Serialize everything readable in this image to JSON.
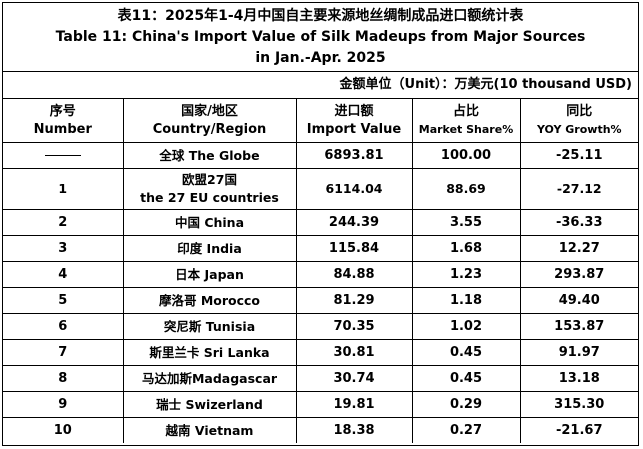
{
  "title": {
    "zh": "表11：2025年1-4月中国自主要来源地丝绸制成品进口额统计表",
    "en_line1": "Table 11: China's Import Value of Silk Madeups from Major Sources",
    "en_line2": "in Jan.-Apr. 2025"
  },
  "unit": "金额单位（Unit）：万美元(10 thousand USD)",
  "headers": [
    {
      "zh": "序号",
      "en": "Number"
    },
    {
      "zh": "国家/地区",
      "en": "Country/Region"
    },
    {
      "zh": "进口额",
      "en": "Import Value"
    },
    {
      "zh": "占比",
      "en": "Market Share%"
    },
    {
      "zh": "同比",
      "en": "YOY Growth%"
    }
  ],
  "rows": [
    {
      "number": "",
      "country": "全球 The Globe",
      "country_line2": "",
      "value": "6893.81",
      "share": "100.00",
      "growth": "-25.11"
    },
    {
      "number": "1",
      "country": "欧盟27国",
      "country_line2": "the 27 EU countries",
      "value": "6114.04",
      "share": "88.69",
      "growth": "-27.12"
    },
    {
      "number": "2",
      "country": "中国 China",
      "country_line2": "",
      "value": "244.39",
      "share": "3.55",
      "growth": "-36.33"
    },
    {
      "number": "3",
      "country": "印度 India",
      "country_line2": "",
      "value": "115.84",
      "share": "1.68",
      "growth": "12.27"
    },
    {
      "number": "4",
      "country": "日本 Japan",
      "country_line2": "",
      "value": "84.88",
      "share": "1.23",
      "growth": "293.87"
    },
    {
      "number": "5",
      "country": "摩洛哥 Morocco",
      "country_line2": "",
      "value": "81.29",
      "share": "1.18",
      "growth": "49.40"
    },
    {
      "number": "6",
      "country": "突尼斯 Tunisia",
      "country_line2": "",
      "value": "70.35",
      "share": "1.02",
      "growth": "153.87"
    },
    {
      "number": "7",
      "country": "斯里兰卡 Sri Lanka",
      "country_line2": "",
      "value": "30.81",
      "share": "0.45",
      "growth": "91.97"
    },
    {
      "number": "8",
      "country": "马达加斯Madagascar",
      "country_line2": "",
      "value": "30.74",
      "share": "0.45",
      "growth": "13.18"
    },
    {
      "number": "9",
      "country": "瑞士 Swizerland",
      "country_line2": "",
      "value": "19.81",
      "share": "0.29",
      "growth": "315.30"
    },
    {
      "number": "10",
      "country": "越南 Vietnam",
      "country_line2": "",
      "value": "18.38",
      "share": "0.27",
      "growth": "-21.67"
    }
  ]
}
